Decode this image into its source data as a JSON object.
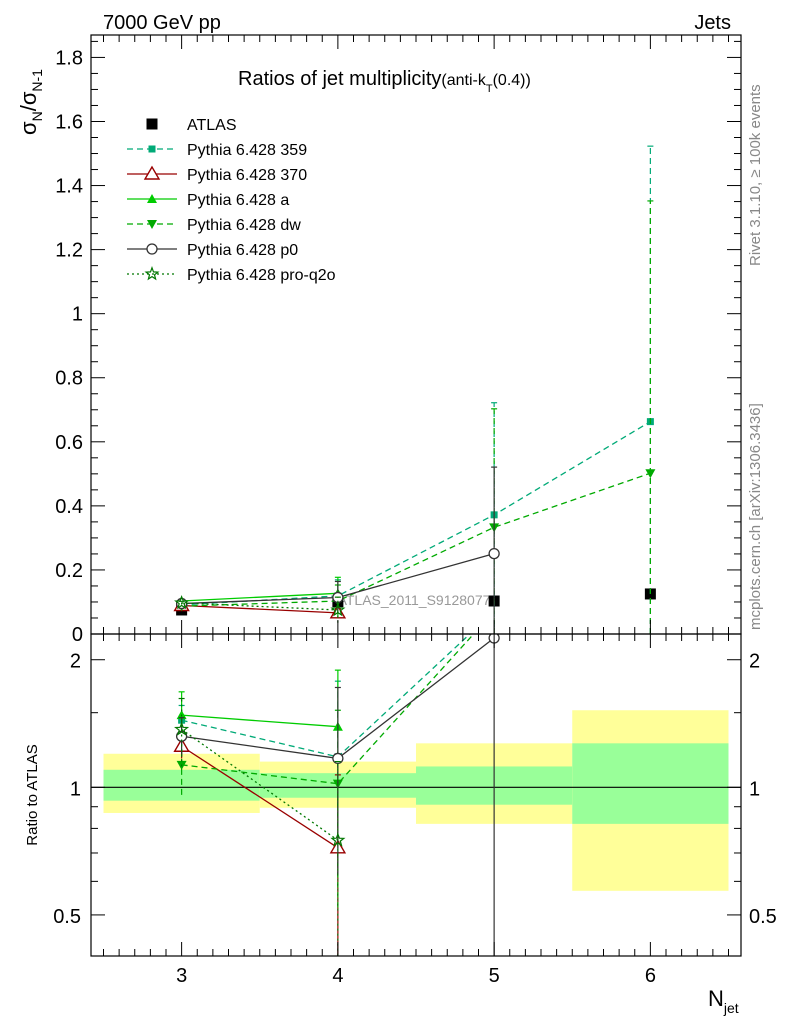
{
  "header": {
    "left": "7000 GeV pp",
    "right": "Jets"
  },
  "side_labels": {
    "rivet": "Rivet 3.1.10, ≥ 100k events",
    "mcplots": "mcplots.cern.ch [arXiv:1306.3436]"
  },
  "chart_data": [
    {
      "type": "line",
      "panel": "main",
      "title_main": "Ratios of jet multiplicity",
      "title_sub": "(anti-k",
      "title_subscript": "T",
      "title_tail": "(0.4))",
      "ylabel": "σN/σN-1",
      "ylim": [
        0,
        1.87
      ],
      "yticks": [
        0,
        0.2,
        0.4,
        0.6,
        0.8,
        1,
        1.2,
        1.4,
        1.6,
        1.8
      ],
      "ytick_labels": [
        "0",
        "0.2",
        "0.4",
        "0.6",
        "0.8",
        "1",
        "1.2",
        "1.4",
        "1.6",
        "1.8"
      ],
      "xlim": [
        2.42,
        6.58
      ],
      "watermark": "ATLAS_2011_S9128077",
      "legend_position": "top-left",
      "series": [
        {
          "name": "ATLAS",
          "color": "#000000",
          "marker": "square-filled",
          "dash": "none",
          "x": [
            3,
            4,
            5,
            6
          ],
          "y": [
            0.075,
            0.101,
            0.103,
            0.125
          ],
          "err": [
            0.004,
            0.006,
            0.012,
            0.015
          ]
        },
        {
          "name": "Pythia 6.428 359",
          "color": "#00aa77",
          "marker": "square-small",
          "dash": "6,4",
          "x": [
            3,
            4,
            5,
            6
          ],
          "y": [
            0.091,
            0.119,
            0.372,
            0.663
          ],
          "err": [
            0.005,
            0.05,
            0.35,
            0.86
          ]
        },
        {
          "name": "Pythia 6.428 370",
          "color": "#990000",
          "marker": "triangle-open",
          "dash": "none",
          "x": [
            3,
            4
          ],
          "y": [
            0.089,
            0.066
          ],
          "err": [
            0.003,
            0.012
          ]
        },
        {
          "name": "Pythia 6.428 a",
          "color": "#00cc00",
          "marker": "triangle-filled",
          "dash": "none",
          "x": [
            3,
            4
          ],
          "y": [
            0.103,
            0.127
          ],
          "err": [
            0.004,
            0.05
          ]
        },
        {
          "name": "Pythia 6.428 dw",
          "color": "#00aa00",
          "marker": "triangle-down-filled",
          "dash": "6,4",
          "x": [
            3,
            4,
            5,
            6
          ],
          "y": [
            0.087,
            0.103,
            0.333,
            0.502
          ],
          "err": [
            0.005,
            0.05,
            0.37,
            0.85
          ]
        },
        {
          "name": "Pythia 6.428 p0",
          "color": "#333333",
          "marker": "circle-open",
          "dash": "none",
          "x": [
            3,
            4,
            5
          ],
          "y": [
            0.095,
            0.114,
            0.251
          ],
          "err": [
            0.005,
            0.05,
            0.27
          ]
        },
        {
          "name": "Pythia 6.428 pro-q2o",
          "color": "#007700",
          "marker": "star-open",
          "dash": "2,3",
          "x": [
            3,
            4
          ],
          "y": [
            0.097,
            0.075
          ],
          "err": [
            0.005,
            0.04
          ]
        }
      ]
    },
    {
      "type": "line",
      "panel": "ratio",
      "ylabel": "Ratio to ATLAS",
      "xlabel": "Njet",
      "scale": "log",
      "ylim": [
        0.4,
        2.3
      ],
      "yticks": [
        0.5,
        1,
        2
      ],
      "ytick_labels": [
        "0.5",
        "1",
        "2"
      ],
      "xticks": [
        3,
        4,
        5,
        6
      ],
      "xtick_labels": [
        "3",
        "4",
        "5",
        "6"
      ],
      "bands": [
        {
          "x0": 2.5,
          "x1": 3.5,
          "inner": [
            0.93,
            1.1
          ],
          "outer": [
            0.87,
            1.2
          ]
        },
        {
          "x0": 3.5,
          "x1": 4.5,
          "inner": [
            0.945,
            1.08
          ],
          "outer": [
            0.895,
            1.15
          ]
        },
        {
          "x0": 4.5,
          "x1": 5.5,
          "inner": [
            0.91,
            1.12
          ],
          "outer": [
            0.82,
            1.27
          ]
        },
        {
          "x0": 5.5,
          "x1": 6.5,
          "inner": [
            0.82,
            1.27
          ],
          "outer": [
            0.57,
            1.52
          ]
        }
      ],
      "series": [
        {
          "name": "Pythia 6.428 359",
          "x": [
            3,
            4,
            5
          ],
          "y": [
            1.44,
            1.18,
            2.6
          ],
          "err": [
            0.12,
            0.6,
            0
          ]
        },
        {
          "name": "Pythia 6.428 370",
          "x": [
            3,
            4
          ],
          "y": [
            1.25,
            0.72
          ],
          "err": [
            0.08,
            0.35
          ]
        },
        {
          "name": "Pythia 6.428 a",
          "x": [
            3,
            4
          ],
          "y": [
            1.48,
            1.39
          ],
          "err": [
            0.2,
            0.5
          ]
        },
        {
          "name": "Pythia 6.428 dw",
          "x": [
            3,
            4,
            5
          ],
          "y": [
            1.13,
            1.02,
            2.6
          ],
          "err": [
            0.17,
            0.5,
            0
          ]
        },
        {
          "name": "Pythia 6.428 p0",
          "x": [
            3,
            4,
            5
          ],
          "y": [
            1.32,
            1.17,
            2.25
          ],
          "err": [
            0.14,
            0.55,
            1.9
          ]
        },
        {
          "name": "Pythia 6.428 pro-q2o",
          "x": [
            3,
            4
          ],
          "y": [
            1.37,
            0.75
          ],
          "err": [
            0.25,
            0.4
          ]
        }
      ]
    }
  ]
}
